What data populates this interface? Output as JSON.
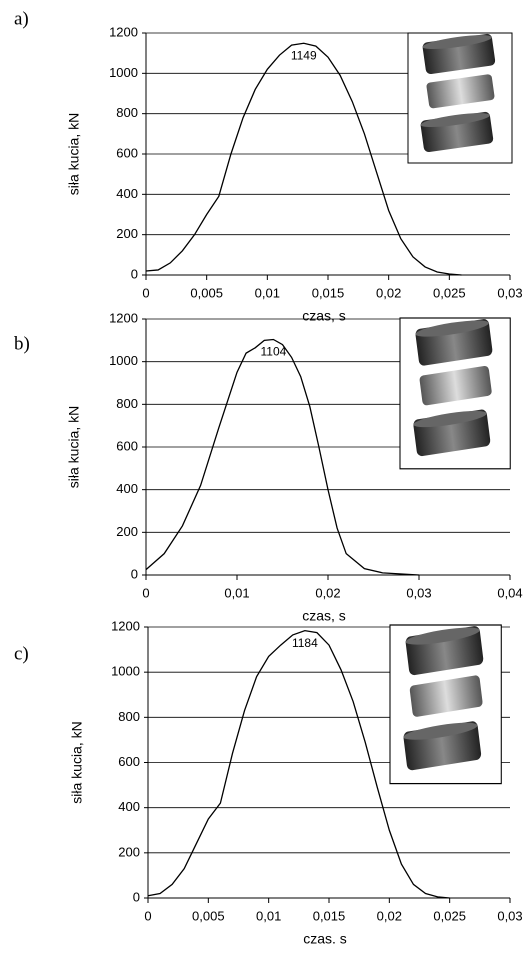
{
  "chart_data": [
    {
      "type": "line",
      "label": "a)",
      "xlabel": "czas, s",
      "ylabel": "siła kucia, kN",
      "color": "#000000",
      "grid": true,
      "x": [
        0,
        0.001,
        0.002,
        0.003,
        0.004,
        0.005,
        0.006,
        0.007,
        0.008,
        0.009,
        0.01,
        0.011,
        0.012,
        0.013,
        0.014,
        0.015,
        0.016,
        0.017,
        0.018,
        0.019,
        0.02,
        0.021,
        0.022,
        0.023,
        0.024,
        0.025,
        0.026
      ],
      "values": [
        20,
        25,
        60,
        120,
        200,
        300,
        390,
        600,
        780,
        920,
        1020,
        1090,
        1140,
        1149,
        1135,
        1080,
        990,
        860,
        700,
        510,
        320,
        180,
        90,
        40,
        15,
        5,
        0
      ],
      "xlim": [
        0,
        0.03
      ],
      "ylim": [
        0,
        1200
      ],
      "xticks": [
        0,
        {
          "value": 0.005,
          "label": "0,005"
        },
        {
          "value": 0.01,
          "label": "0,01"
        },
        {
          "value": 0.015,
          "label": "0,015"
        },
        {
          "value": 0.02,
          "label": "0,02"
        },
        {
          "value": 0.025,
          "label": "0,025"
        },
        {
          "value": 0.03,
          "label": "0,03"
        }
      ],
      "yticks": [
        0,
        200,
        400,
        600,
        800,
        1000,
        1200
      ],
      "annotations": [
        {
          "text": "1149",
          "x": 0.013,
          "y": 1149
        }
      ]
    },
    {
      "type": "line",
      "label": "b)",
      "xlabel": "czas, s",
      "ylabel": "siła kucia, kN",
      "color": "#000000",
      "grid": true,
      "x": [
        0,
        0.002,
        0.004,
        0.006,
        0.008,
        0.01,
        0.011,
        0.012,
        0.013,
        0.014,
        0.015,
        0.016,
        0.017,
        0.018,
        0.019,
        0.02,
        0.021,
        0.022,
        0.024,
        0.026,
        0.03
      ],
      "values": [
        25,
        100,
        230,
        420,
        690,
        950,
        1040,
        1065,
        1100,
        1104,
        1080,
        1020,
        930,
        790,
        600,
        400,
        220,
        100,
        30,
        10,
        0
      ],
      "xlim": [
        0,
        0.04
      ],
      "ylim": [
        0,
        1200
      ],
      "xticks": [
        0,
        {
          "value": 0.01,
          "label": "0,01"
        },
        {
          "value": 0.02,
          "label": "0,02"
        },
        {
          "value": 0.03,
          "label": "0,03"
        },
        {
          "value": 0.04,
          "label": "0,04"
        }
      ],
      "yticks": [
        0,
        200,
        400,
        600,
        800,
        1000,
        1200
      ],
      "annotations": [
        {
          "text": "1104",
          "x": 0.014,
          "y": 1104
        }
      ]
    },
    {
      "type": "line",
      "label": "c)",
      "xlabel": "czas. s",
      "ylabel": "siła kucia, kN",
      "color": "#000000",
      "grid": true,
      "x": [
        0,
        0.001,
        0.002,
        0.003,
        0.004,
        0.005,
        0.006,
        0.007,
        0.008,
        0.009,
        0.01,
        0.011,
        0.012,
        0.013,
        0.014,
        0.015,
        0.016,
        0.017,
        0.018,
        0.019,
        0.02,
        0.021,
        0.022,
        0.023,
        0.024,
        0.025
      ],
      "values": [
        10,
        20,
        60,
        130,
        240,
        350,
        420,
        640,
        830,
        980,
        1070,
        1120,
        1165,
        1184,
        1175,
        1120,
        1010,
        870,
        690,
        490,
        300,
        150,
        60,
        20,
        5,
        0
      ],
      "xlim": [
        0,
        0.03
      ],
      "ylim": [
        0,
        1200
      ],
      "xticks": [
        0,
        {
          "value": 0.005,
          "label": "0,005"
        },
        {
          "value": 0.01,
          "label": "0,01"
        },
        {
          "value": 0.015,
          "label": "0,015"
        },
        {
          "value": 0.02,
          "label": "0,02"
        },
        {
          "value": 0.025,
          "label": "0,025"
        },
        {
          "value": 0.03,
          "label": "0,03"
        }
      ],
      "yticks": [
        0,
        200,
        400,
        600,
        800,
        1000,
        1200
      ],
      "annotations": [
        {
          "text": "1184",
          "x": 0.013,
          "y": 1184
        }
      ]
    }
  ]
}
